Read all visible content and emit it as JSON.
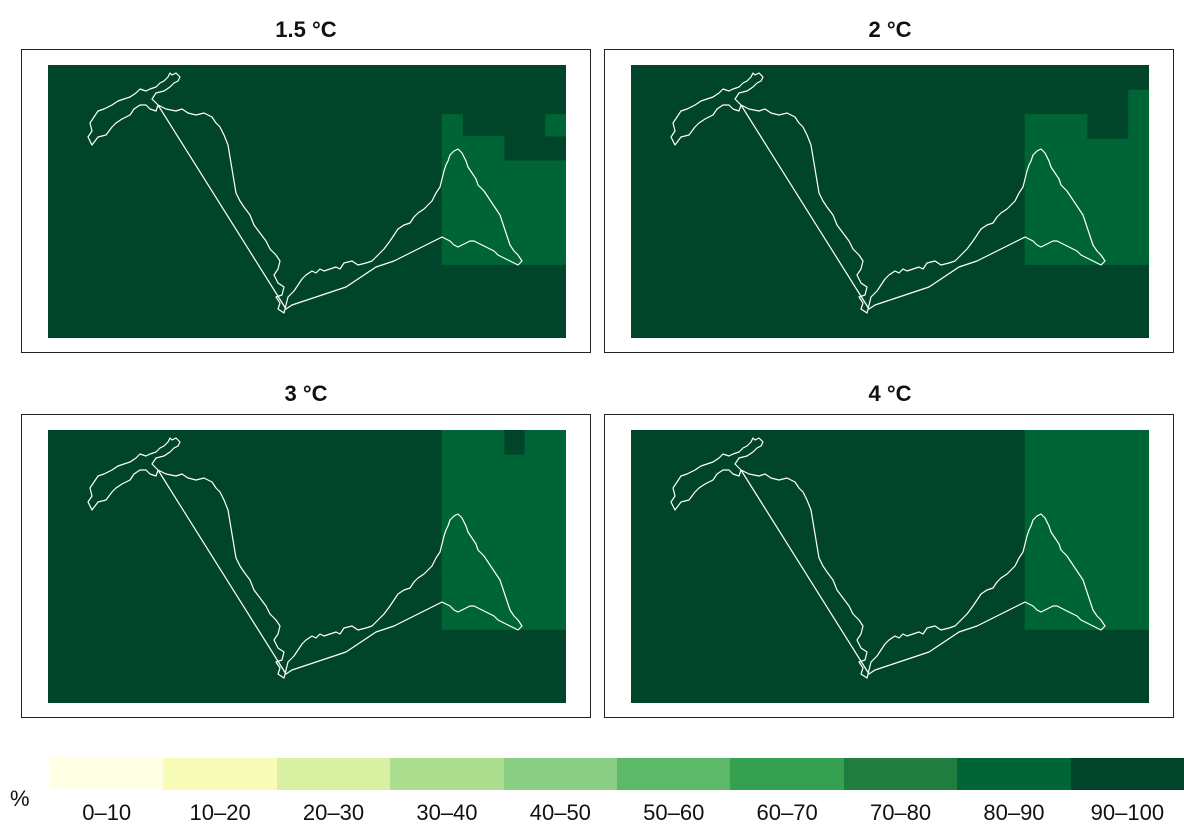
{
  "panels": [
    {
      "title": "1.5 °C",
      "cells": [
        {
          "col": 0,
          "row": 0,
          "w": 1,
          "h": 1,
          "value": "90-100"
        },
        {
          "col": 0.76,
          "row": 0.18,
          "w": 0.04,
          "h": 0.08,
          "value": "80-90"
        },
        {
          "col": 0.96,
          "row": 0.18,
          "w": 0.04,
          "h": 0.08,
          "value": "80-90"
        },
        {
          "col": 0.76,
          "row": 0.26,
          "w": 0.12,
          "h": 0.09,
          "value": "80-90"
        },
        {
          "col": 0.76,
          "row": 0.35,
          "w": 0.24,
          "h": 0.38,
          "value": "80-90"
        }
      ]
    },
    {
      "title": "2 °C",
      "cells": [
        {
          "col": 0,
          "row": 0,
          "w": 1,
          "h": 1,
          "value": "90-100"
        },
        {
          "col": 0.96,
          "row": 0.09,
          "w": 0.04,
          "h": 0.09,
          "value": "80-90"
        },
        {
          "col": 0.76,
          "row": 0.18,
          "w": 0.12,
          "h": 0.09,
          "value": "80-90"
        },
        {
          "col": 0.96,
          "row": 0.18,
          "w": 0.04,
          "h": 0.09,
          "value": "80-90"
        },
        {
          "col": 0.76,
          "row": 0.27,
          "w": 0.24,
          "h": 0.46,
          "value": "80-90"
        }
      ]
    },
    {
      "title": "3 °C",
      "cells": [
        {
          "col": 0,
          "row": 0,
          "w": 1,
          "h": 1,
          "value": "90-100"
        },
        {
          "col": 0.76,
          "row": 0,
          "w": 0.12,
          "h": 0.73,
          "value": "80-90"
        },
        {
          "col": 0.92,
          "row": 0,
          "w": 0.08,
          "h": 0.73,
          "value": "80-90"
        },
        {
          "col": 0.88,
          "row": 0.09,
          "w": 0.04,
          "h": 0.64,
          "value": "80-90"
        }
      ]
    },
    {
      "title": "4 °C",
      "cells": [
        {
          "col": 0,
          "row": 0,
          "w": 1,
          "h": 1,
          "value": "90-100"
        },
        {
          "col": 0.76,
          "row": 0,
          "w": 0.24,
          "h": 0.73,
          "value": "80-90"
        }
      ]
    }
  ],
  "legend": {
    "unit": "%",
    "items": [
      {
        "label": "0–10",
        "color": "#FFFFE5"
      },
      {
        "label": "10–20",
        "color": "#F7FCB9"
      },
      {
        "label": "20–30",
        "color": "#D9F0A3"
      },
      {
        "label": "30–40",
        "color": "#ADDD8E"
      },
      {
        "label": "40–50",
        "color": "#8ACE85"
      },
      {
        "label": "50–60",
        "color": "#5DB96A"
      },
      {
        "label": "60–70",
        "color": "#35A050"
      },
      {
        "label": "70–80",
        "color": "#1E7D3F"
      },
      {
        "label": "80–90",
        "color": "#006536"
      },
      {
        "label": "90–100",
        "color": "#004529"
      }
    ]
  },
  "colors": {
    "outline": "#FFFFFF",
    "frame": "#222222"
  }
}
